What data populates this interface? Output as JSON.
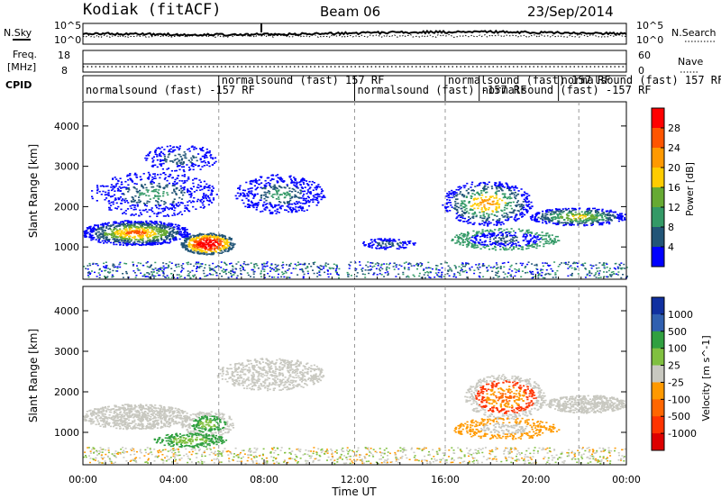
{
  "header": {
    "title": "Kodiak (fitACF)",
    "beam": "Beam 06",
    "date": "23/Sep/2014"
  },
  "chart_data": {
    "type": "heatmap",
    "x_ticks": [
      "00:00",
      "04:00",
      "08:00",
      "12:00",
      "16:00",
      "20:00",
      "00:00"
    ],
    "xlabel": "Time UT",
    "x_range_hours": [
      0,
      24
    ],
    "noise_panel": {
      "left_label": "N.Sky",
      "left_ticks": [
        "10^5",
        "10^0"
      ],
      "right_label": "N.Search",
      "right_ticks": [
        "10^5",
        "10^0"
      ]
    },
    "freq_panel": {
      "left_label_top": "Freq.",
      "left_label_bottom": "[MHz]",
      "left_ticks": [
        "18",
        "8"
      ],
      "right_label": "Nave",
      "right_ticks": [
        "60",
        "0"
      ]
    },
    "cpid": {
      "label": "CPID",
      "segments": [
        {
          "text": "normalsound (fast) -157 RF",
          "start_hour": 0.0
        },
        {
          "text": "normalsound (fast) 157 RF",
          "start_hour": 6.0
        },
        {
          "text": "normalsound (fast) -157 RF",
          "start_hour": 12.0
        },
        {
          "text": "normalsound (fast) 157 RF",
          "start_hour": 16.0
        },
        {
          "text": "normalsound (fast) -157 RF",
          "start_hour": 17.5
        },
        {
          "text": "normalsound (fast) 157 RF",
          "start_hour": 21.0
        }
      ]
    },
    "power_panel": {
      "ylabel": "Slant Range [km]",
      "y_ticks": [
        "4000",
        "3000",
        "2000",
        "1000"
      ],
      "y_range": [
        200,
        4600
      ],
      "colorbar_label": "Power [dB]",
      "colorbar_ticks": [
        "28",
        "24",
        "20",
        "16",
        "12",
        "8",
        "4"
      ],
      "colorbar_colors": [
        "#ff0000",
        "#ff5500",
        "#ff9900",
        "#ffcc00",
        "#66aa33",
        "#339966",
        "#225577",
        "#0000ff"
      ]
    },
    "velocity_panel": {
      "ylabel": "Slant Range [km]",
      "y_ticks": [
        "4000",
        "3000",
        "2000",
        "1000"
      ],
      "y_range": [
        200,
        4600
      ],
      "colorbar_label": "Velocity [m s^-1]",
      "colorbar_ticks": [
        "1000",
        "500",
        "100",
        "25",
        "-25",
        "-100",
        "-500",
        "-1000"
      ],
      "colorbar_colors": [
        "#1030a0",
        "#3060b0",
        "#30a040",
        "#80c040",
        "#c8c8c0",
        "#ff9900",
        "#ff6600",
        "#ff3300",
        "#dd0000"
      ]
    }
  }
}
